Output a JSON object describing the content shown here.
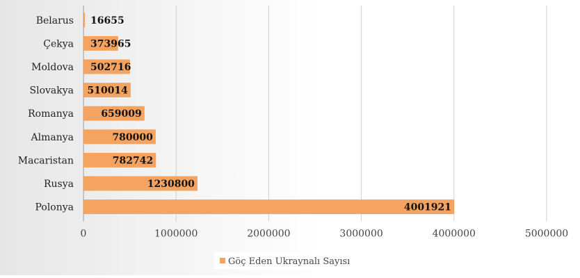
{
  "chart_data": {
    "type": "bar",
    "orientation": "horizontal",
    "categories": [
      "Belarus",
      "Çekya",
      "Moldova",
      "Slovakya",
      "Romanya",
      "Almanya",
      "Macaristan",
      "Rusya",
      "Polonya"
    ],
    "series": [
      {
        "name": "Göç Eden Ukraynalı Sayısı",
        "values": [
          16655,
          373965,
          502716,
          510014,
          659009,
          780000,
          782742,
          1230800,
          4001921
        ],
        "value_labels": [
          "16655",
          "373965",
          "502716",
          "510014",
          "659009",
          "780000",
          "782742",
          "1230800",
          "4001921"
        ]
      }
    ],
    "x_ticks": [
      "0",
      "1000000",
      "2000000",
      "3000000",
      "4000000",
      "5000000"
    ],
    "xlim": [
      0,
      5000000
    ],
    "grid": "vertical",
    "legend_position": "bottom",
    "colors": {
      "bar": "#f4a460",
      "background_left": "#e6e6e6",
      "background_right": "#ffffff",
      "grid": "#cfcfcf",
      "label": "#222222"
    }
  }
}
